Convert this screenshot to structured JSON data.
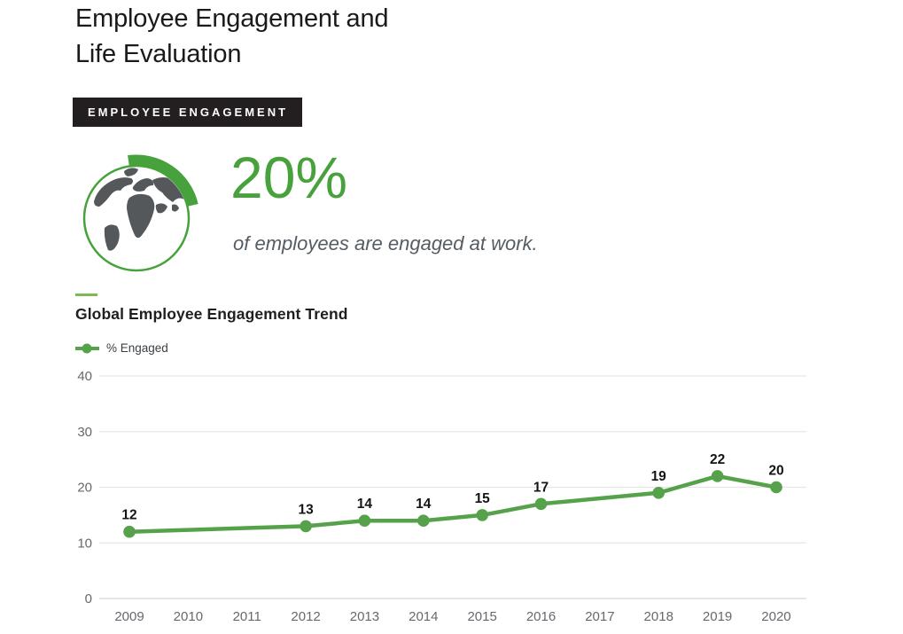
{
  "page": {
    "title_line1": "Employee Engagement and",
    "title_line2": "Life Evaluation",
    "badge": "EMPLOYEE ENGAGEMENT",
    "stat": {
      "value": "20%",
      "caption": "of employees are engaged at work.",
      "icon": "globe-with-progress-arc"
    },
    "section_heading": "Global Employee Engagement Trend",
    "legend": {
      "entries": [
        {
          "label": "% Engaged",
          "marker": "line-with-dot"
        }
      ]
    }
  },
  "colors": {
    "accent_green": "#47a13c",
    "line_green": "#55a24b",
    "dash_green": "#7cba50",
    "badge_bg": "#231f20",
    "land_gray": "#54585b",
    "axis_text": "#65696d",
    "gridline": "#e6e6e6",
    "zero_line": "#d8d8d8",
    "data_label": "#141414"
  },
  "chart_data": {
    "type": "line",
    "title": "Global Employee Engagement Trend",
    "categories": [
      "2009",
      "2010",
      "2011",
      "2012",
      "2013",
      "2014",
      "2015",
      "2016",
      "2017",
      "2018",
      "2019",
      "2020"
    ],
    "series": [
      {
        "name": "% Engaged",
        "points": [
          {
            "x": "2009",
            "y": 12
          },
          {
            "x": "2012",
            "y": 13
          },
          {
            "x": "2013",
            "y": 14
          },
          {
            "x": "2014",
            "y": 14
          },
          {
            "x": "2015",
            "y": 15
          },
          {
            "x": "2016",
            "y": 17
          },
          {
            "x": "2018",
            "y": 19
          },
          {
            "x": "2019",
            "y": 22
          },
          {
            "x": "2020",
            "y": 20
          }
        ]
      }
    ],
    "ylim": [
      0,
      40
    ],
    "yticks": [
      0,
      10,
      20,
      30,
      40
    ],
    "grid": true,
    "legend_position": "top-left",
    "markers_on_measured_points_only": true,
    "value_labels_above_points": true
  }
}
